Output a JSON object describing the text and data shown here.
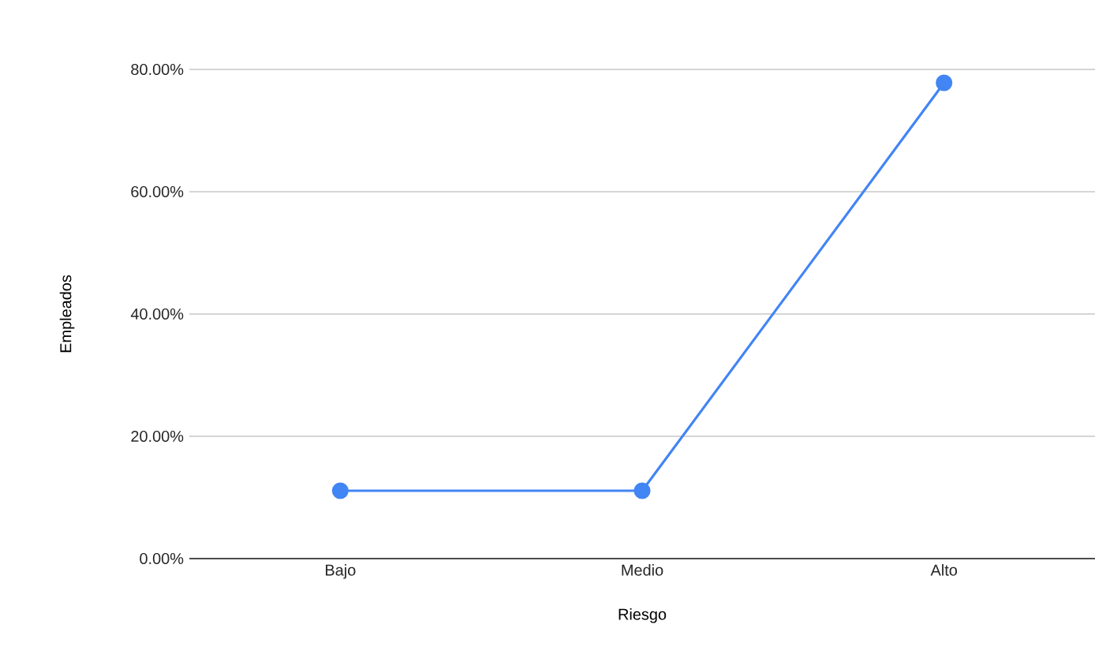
{
  "chart_data": {
    "type": "line",
    "xlabel": "Riesgo",
    "ylabel": "Empleados",
    "categories": [
      "Bajo",
      "Medio",
      "Alto"
    ],
    "series": [
      {
        "color": "#4285f4",
        "values": [
          11.1,
          11.1,
          77.8
        ]
      }
    ],
    "ylim": [
      0,
      80
    ],
    "yticks": [
      {
        "value": 0,
        "label": "0.00%"
      },
      {
        "value": 20,
        "label": "20.00%"
      },
      {
        "value": 40,
        "label": "40.00%"
      },
      {
        "value": 60,
        "label": "60.00%"
      },
      {
        "value": 80,
        "label": "80.00%"
      }
    ],
    "grid": "y",
    "marker": "circle",
    "line_style": "solid"
  }
}
